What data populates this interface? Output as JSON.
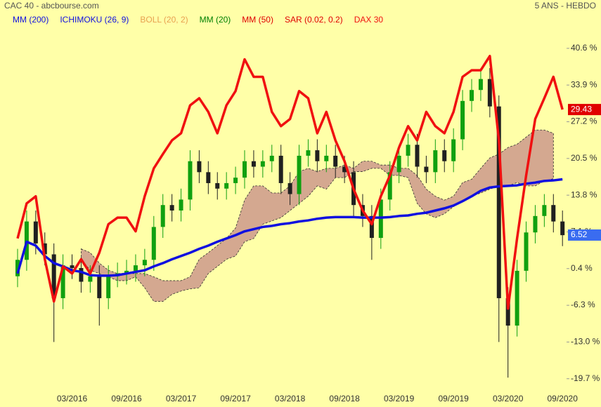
{
  "chart_data": {
    "type": "candlestick",
    "title": "CAC 40 - abcbourse.com",
    "subtitle": "5 ANS - HEBDO",
    "background": "#ffffa8",
    "grid": false,
    "categories": [
      null,
      null,
      null,
      null,
      null,
      null,
      "03/2016",
      null,
      null,
      null,
      null,
      null,
      "09/2016",
      null,
      null,
      null,
      null,
      null,
      "03/2017",
      null,
      null,
      null,
      null,
      null,
      "09/2017",
      null,
      null,
      null,
      null,
      null,
      "03/2018",
      null,
      null,
      null,
      null,
      null,
      "09/2018",
      null,
      null,
      null,
      null,
      null,
      "03/2019",
      null,
      null,
      null,
      null,
      null,
      "09/2019",
      null,
      null,
      null,
      null,
      null,
      "03/2020",
      null,
      null,
      null,
      null,
      null,
      "09/2020"
    ],
    "ylim": [
      -22.3,
      44.3
    ],
    "yticks": [
      {
        "value": -19.7,
        "label": "-19.7 %"
      },
      {
        "value": -13.0,
        "label": "-13.0 %"
      },
      {
        "value": -6.3,
        "label": "-6.3 %"
      },
      {
        "value": 0.4,
        "label": "0.4 %"
      },
      {
        "value": 7.1,
        "label": "7.1 %"
      },
      {
        "value": 13.8,
        "label": "13.8 %"
      },
      {
        "value": 20.5,
        "label": "20.5 %"
      },
      {
        "value": 27.2,
        "label": "27.2 %"
      },
      {
        "value": 33.9,
        "label": "33.9 %"
      },
      {
        "value": 40.6,
        "label": "40.6 %"
      }
    ],
    "candles": {
      "up_color": "#10a010",
      "down_color": "#202020",
      "open": [
        -1,
        2,
        9,
        5,
        3,
        -5,
        1,
        0.5,
        -2,
        -1,
        -5,
        -1,
        -0.5,
        0,
        1,
        2,
        8,
        12,
        11,
        13,
        20,
        18,
        16,
        15,
        16,
        17,
        20,
        19,
        20,
        21,
        16,
        14,
        21,
        22,
        20,
        21,
        19,
        18,
        12,
        10,
        6,
        13,
        18,
        21,
        23,
        19,
        18,
        22,
        20,
        24,
        31,
        33,
        35,
        30,
        -5,
        -10,
        0,
        7,
        10,
        12,
        9
      ],
      "high": [
        4,
        11,
        11,
        7,
        5,
        3,
        3,
        2.5,
        1,
        1,
        1,
        1.5,
        2,
        3,
        4,
        10,
        14,
        14,
        15,
        22,
        22,
        20,
        18,
        18,
        19,
        22,
        22,
        22,
        23,
        23,
        18,
        23,
        24,
        24,
        23,
        23,
        21,
        20,
        14,
        12,
        15,
        20,
        23,
        25,
        25,
        21,
        24,
        24,
        26,
        33,
        35,
        37,
        37,
        32,
        -3,
        2,
        9,
        12,
        14,
        14,
        11
      ],
      "low": [
        -3,
        0,
        3,
        1,
        -13,
        -7,
        -1.5,
        -4,
        -4,
        -10,
        -7,
        -3,
        -2.5,
        -2,
        -1,
        0,
        6,
        9,
        9,
        11,
        16,
        14,
        13,
        13,
        14,
        15,
        17,
        17,
        18,
        14,
        12,
        12,
        19,
        18,
        18,
        17,
        16,
        10,
        8,
        2,
        4,
        11,
        16,
        19,
        17,
        16,
        16,
        18,
        18,
        22,
        29,
        31,
        28,
        -13,
        -19.5,
        -12,
        -2,
        5,
        8,
        7,
        4.5
      ],
      "close": [
        2,
        9,
        5,
        3,
        -5,
        1,
        0.5,
        -2,
        -1,
        -5,
        -1,
        -0.5,
        0,
        1,
        2,
        8,
        12,
        11,
        13,
        20,
        18,
        16,
        15,
        16,
        17,
        20,
        19,
        20,
        21,
        16,
        14,
        21,
        22,
        20,
        21,
        19,
        18,
        12,
        10,
        6,
        13,
        18,
        21,
        23,
        19,
        18,
        22,
        20,
        24,
        31,
        33,
        35,
        30,
        -5,
        -10,
        0,
        7,
        10,
        12,
        9,
        6.5
      ]
    },
    "series": [
      {
        "name": "MM (200)",
        "color": "#1010e0",
        "values": [
          -0.5,
          5.3,
          4.6,
          2.7,
          1.4,
          0.8,
          0.1,
          -0.2,
          -0.8,
          -0.9,
          -0.9,
          -0.8,
          -0.5,
          -0.2,
          0.1,
          0.8,
          1.4,
          2.1,
          2.7,
          3.3,
          4.0,
          4.6,
          5.3,
          5.9,
          6.5,
          7.2,
          7.6,
          8.0,
          8.2,
          8.5,
          8.7,
          9.0,
          9.2,
          9.5,
          9.7,
          9.8,
          9.8,
          9.8,
          9.7,
          9.7,
          9.7,
          9.8,
          10.0,
          10.1,
          10.4,
          10.6,
          11.0,
          11.4,
          11.9,
          12.7,
          13.6,
          14.6,
          15.2,
          15.4,
          15.5,
          15.6,
          15.9,
          16.1,
          16.4,
          16.5,
          16.7
        ]
      },
      {
        "name": "ICHIMOKU (26, 9)",
        "color": "#1010e0",
        "cloud_color": "#d4a890",
        "upper": [
          null,
          null,
          null,
          null,
          null,
          null,
          null,
          4.0,
          3.3,
          1.4,
          0.1,
          -0.5,
          -0.5,
          -0.5,
          -0.5,
          -1.1,
          -1.8,
          -1.8,
          -1.8,
          -1.1,
          2.1,
          3.3,
          4.6,
          5.9,
          7.8,
          12.9,
          15.5,
          15.5,
          14.2,
          14.2,
          15.5,
          18.1,
          18.7,
          18.1,
          18.7,
          18.7,
          19.3,
          18.7,
          20.0,
          20.0,
          19.3,
          19.3,
          18.7,
          18.7,
          17.4,
          14.9,
          13.6,
          12.9,
          13.6,
          16.1,
          16.7,
          18.7,
          20.6,
          21.3,
          22.5,
          23.1,
          24.4,
          25.7,
          25.7,
          25.1,
          null
        ],
        "lower": [
          null,
          null,
          null,
          null,
          null,
          null,
          null,
          2.1,
          0.1,
          -0.5,
          -1.1,
          -1.8,
          -1.8,
          -1.1,
          -3.1,
          -5.6,
          -5.6,
          -4.3,
          -3.7,
          -3.3,
          -3.1,
          -0.5,
          0.8,
          2.1,
          2.7,
          5.3,
          5.9,
          8.5,
          9.1,
          9.7,
          11.0,
          12.3,
          13.6,
          15.5,
          14.9,
          17.0,
          17.0,
          18.1,
          18.1,
          18.7,
          18.7,
          17.4,
          17.4,
          17.0,
          12.3,
          10.4,
          9.7,
          10.4,
          11.7,
          12.9,
          13.6,
          14.2,
          14.9,
          15.5,
          15.5,
          16.1,
          15.5,
          15.5,
          16.4,
          16.8,
          null
        ]
      },
      {
        "name": "BOLL (20, 2)",
        "color": "#e8a050"
      },
      {
        "name": "MM (20)",
        "color": "#008000"
      },
      {
        "name": "MM (50)",
        "color": "#e00000"
      },
      {
        "name": "SAR (0.02, 0.2)",
        "color": "#e00000"
      },
      {
        "name": "DAX 30",
        "color": "#f01010",
        "values": [
          5.9,
          12.3,
          13.6,
          2.1,
          -5.6,
          0.8,
          -0.5,
          2.1,
          -0.5,
          3.3,
          8.5,
          9.7,
          9.7,
          7.2,
          13.6,
          18.7,
          21.3,
          23.8,
          25.1,
          30.2,
          31.5,
          29.0,
          25.1,
          30.2,
          32.8,
          38.6,
          35.4,
          35.4,
          29.0,
          26.4,
          27.7,
          32.8,
          31.5,
          25.1,
          29.0,
          23.8,
          20.0,
          14.9,
          11.0,
          8.5,
          13.6,
          17.4,
          22.5,
          26.4,
          23.8,
          29.0,
          26.4,
          25.1,
          29.0,
          35.4,
          36.6,
          36.6,
          39.2,
          23.8,
          -6.9,
          5.9,
          17.4,
          27.7,
          31.5,
          35.4,
          29.43
        ]
      }
    ],
    "last_labels": [
      {
        "value": 29.43,
        "color": "#e00000"
      },
      {
        "value": 6.52,
        "color": "#3a6cf0"
      }
    ]
  }
}
